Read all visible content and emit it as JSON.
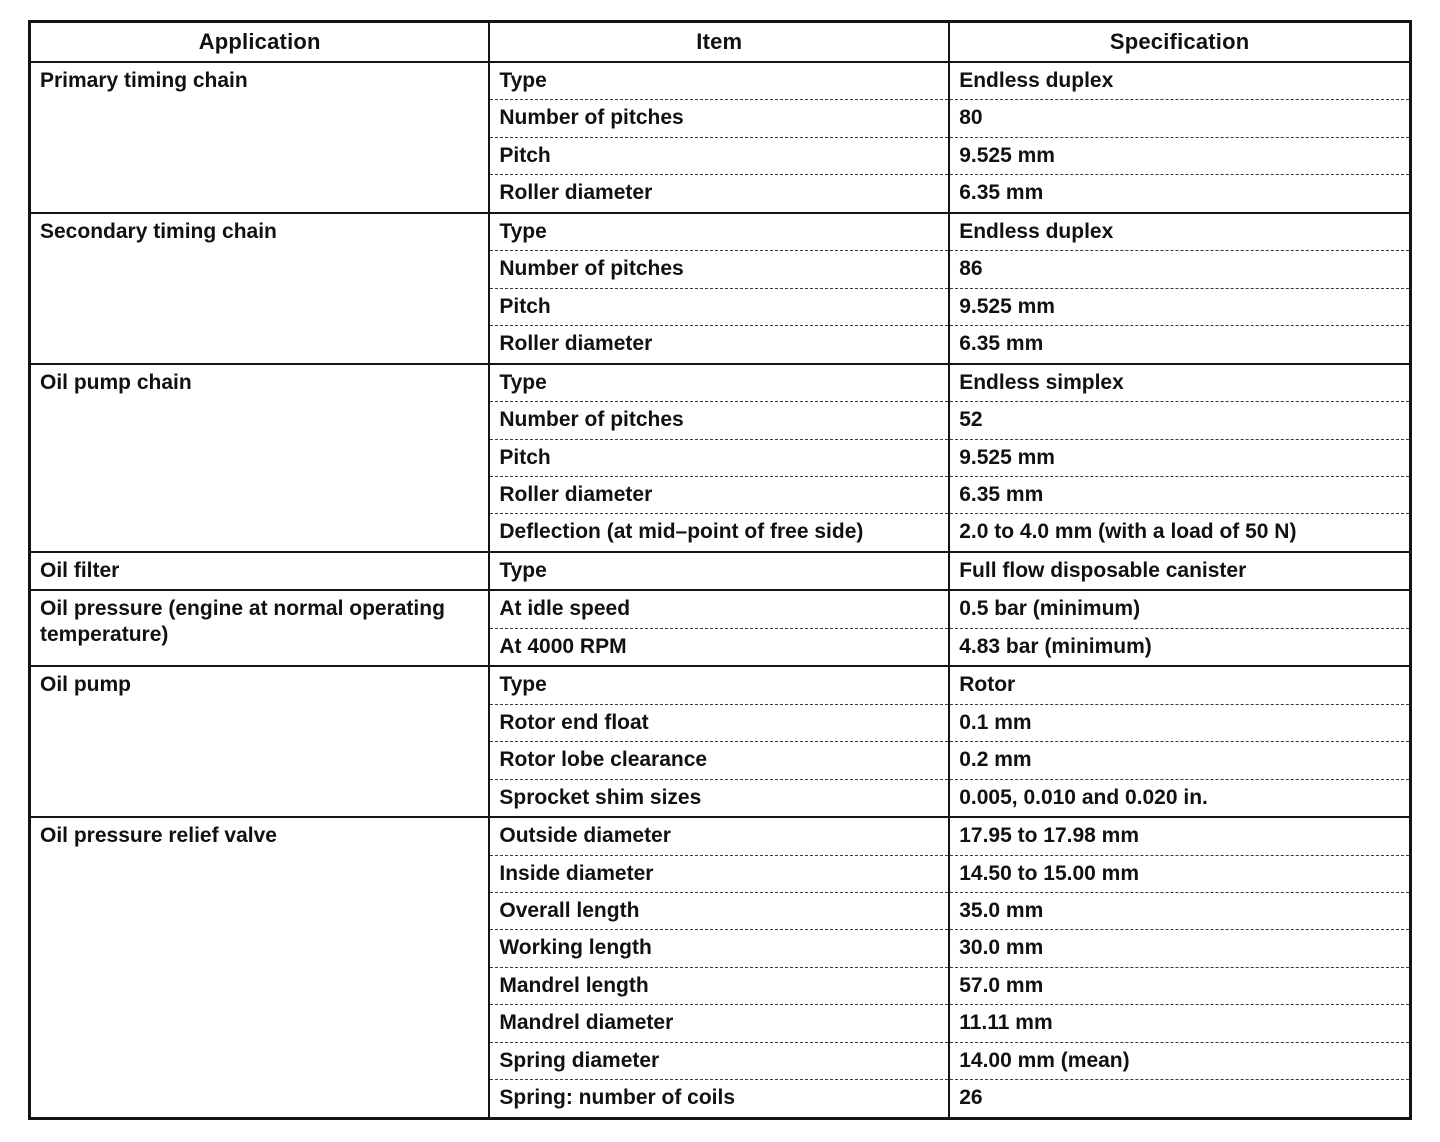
{
  "table": {
    "headers": [
      "Application",
      "Item",
      "Specification"
    ],
    "groups": [
      {
        "application": "Primary timing chain",
        "rows": [
          {
            "item": "Type",
            "spec": "Endless duplex"
          },
          {
            "item": "Number of pitches",
            "spec": "80"
          },
          {
            "item": "Pitch",
            "spec": "9.525 mm"
          },
          {
            "item": "Roller diameter",
            "spec": "6.35 mm"
          }
        ]
      },
      {
        "application": "Secondary timing chain",
        "rows": [
          {
            "item": "Type",
            "spec": "Endless duplex"
          },
          {
            "item": "Number of pitches",
            "spec": "86"
          },
          {
            "item": "Pitch",
            "spec": "9.525 mm"
          },
          {
            "item": "Roller diameter",
            "spec": "6.35 mm"
          }
        ]
      },
      {
        "application": "Oil pump chain",
        "rows": [
          {
            "item": "Type",
            "spec": "Endless simplex"
          },
          {
            "item": "Number of pitches",
            "spec": "52"
          },
          {
            "item": "Pitch",
            "spec": "9.525 mm"
          },
          {
            "item": "Roller diameter",
            "spec": "6.35 mm"
          },
          {
            "item": "Deflection (at mid–point of free side)",
            "spec": "2.0 to 4.0 mm (with a load of 50 N)"
          }
        ]
      },
      {
        "application": "Oil filter",
        "rows": [
          {
            "item": "Type",
            "spec": "Full flow disposable canister"
          }
        ]
      },
      {
        "application": "Oil pressure (engine at normal operating temperature)",
        "rows": [
          {
            "item": "At idle speed",
            "spec": "0.5 bar (minimum)"
          },
          {
            "item": "At 4000 RPM",
            "spec": "4.83 bar (minimum)"
          }
        ]
      },
      {
        "application": "Oil pump",
        "rows": [
          {
            "item": "Type",
            "spec": "Rotor"
          },
          {
            "item": "Rotor end float",
            "spec": "0.1 mm"
          },
          {
            "item": "Rotor lobe clearance",
            "spec": "0.2 mm"
          },
          {
            "item": "Sprocket shim sizes",
            "spec": "0.005, 0.010 and 0.020 in."
          }
        ]
      },
      {
        "application": "Oil pressure relief valve",
        "rows": [
          {
            "item": "Outside diameter",
            "spec": "17.95 to 17.98 mm"
          },
          {
            "item": "Inside diameter",
            "spec": "14.50 to 15.00 mm"
          },
          {
            "item": "Overall length",
            "spec": "35.0 mm"
          },
          {
            "item": "Working length",
            "spec": "30.0 mm"
          },
          {
            "item": "Mandrel length",
            "spec": "57.0 mm"
          },
          {
            "item": "Mandrel diameter",
            "spec": "11.11 mm"
          },
          {
            "item": "Spring diameter",
            "spec": "14.00 mm (mean)"
          },
          {
            "item": "Spring: number of coils",
            "spec": "26"
          }
        ]
      }
    ]
  }
}
